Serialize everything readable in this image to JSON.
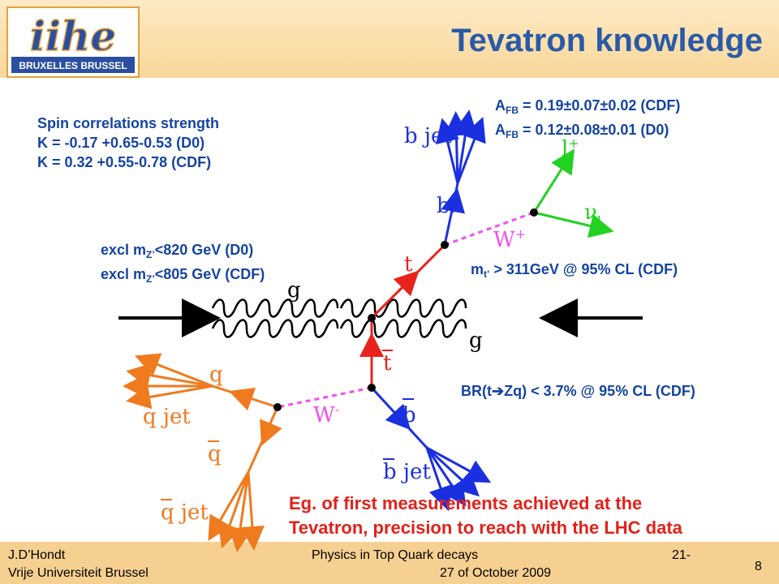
{
  "title": "Tevatron knowledge",
  "logo": {
    "main": "iihe",
    "sub": "BRUXELLES BRUSSEL"
  },
  "spin": {
    "heading": "Spin correlations strength",
    "d0": "K = -0.17 +0.65-0.53 (D0)",
    "cdf": "K =  0.32 +0.55-0.78 (CDF)"
  },
  "afb": {
    "cdf_label": "A",
    "cdf_sub": "FB",
    "cdf_value": " = 0.19±0.07±0.02 (CDF)",
    "d0_label": "A",
    "d0_sub": "FB",
    "d0_value": " = 0.12±0.08±0.01 (D0)"
  },
  "zprime": {
    "d0_pre": "excl m",
    "d0_sub": "Z’",
    "d0_post": "<820 GeV (D0)",
    "cdf_pre": "excl m",
    "cdf_sub": "Z’",
    "cdf_post": "<805 GeV (CDF)"
  },
  "tprime": {
    "pre": "m",
    "sub": "t’",
    "post": " > 311GeV @ 95% CL (CDF)"
  },
  "br": {
    "pre": "BR(t",
    "arrow": "➔",
    "post": "Zq) < 3.7% @ 95% CL (CDF)"
  },
  "diagram": {
    "b_jet": "b  jet",
    "b": "b",
    "l_plus": "l",
    "l_sup": "+",
    "nu": "ν",
    "nu_sub": "l",
    "w_plus": "W",
    "w_plus_sup": "+",
    "t": "t",
    "g_top": "g",
    "g_bottom": "g",
    "tbar": "t",
    "q": "q",
    "q_jet": "q  jet",
    "qbar": "q",
    "qbar_jet": "q  jet",
    "w_minus": "W",
    "w_minus_sup": "-",
    "bbar": "b",
    "bbar_jet": "b  jet"
  },
  "note": {
    "line1": "Eg. of first measurements achieved at the",
    "line2": "Tevatron, precision to reach with the LHC data"
  },
  "footer": {
    "author": "J.D’Hondt",
    "institute": "Vrije Universiteit Brussel",
    "talk": "Physics in Top Quark decays",
    "page_left": "21-",
    "date": "27 of October 2009",
    "slide_no": "8"
  },
  "colors": {
    "title": "#2a5aa8",
    "text": "#1544a0",
    "note": "#e4201a",
    "red": "#e8231c",
    "blue": "#1a30e0",
    "green": "#22d122",
    "orange": "#f07a1e",
    "magenta": "#f050f0"
  }
}
